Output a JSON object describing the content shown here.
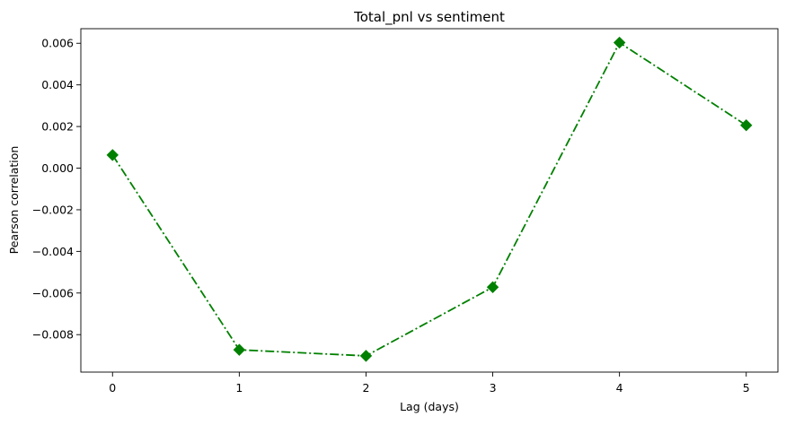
{
  "chart_data": {
    "type": "line",
    "title": "Total_pnl vs sentiment",
    "xlabel": "Lag (days)",
    "ylabel": "Pearson correlation",
    "x": [
      0,
      1,
      2,
      3,
      4,
      5
    ],
    "series": [
      {
        "values": [
          0.00063,
          -0.00873,
          -0.00902,
          -0.00572,
          0.00603,
          0.00206
        ],
        "color": "#008000",
        "line_style": "dash-dot",
        "marker": "diamond"
      }
    ],
    "xlim": [
      -0.25,
      5.25
    ],
    "ylim": [
      -0.0098,
      0.0067
    ],
    "xticks": [
      0,
      1,
      2,
      3,
      4,
      5
    ],
    "xtick_labels": [
      "0",
      "1",
      "2",
      "3",
      "4",
      "5"
    ],
    "yticks": [
      -0.008,
      -0.006,
      -0.004,
      -0.002,
      0.0,
      0.002,
      0.004,
      0.006
    ],
    "ytick_labels": [
      "−0.008",
      "−0.006",
      "−0.004",
      "−0.002",
      "0.000",
      "0.002",
      "0.004",
      "0.006"
    ],
    "grid": false,
    "legend": "none"
  }
}
